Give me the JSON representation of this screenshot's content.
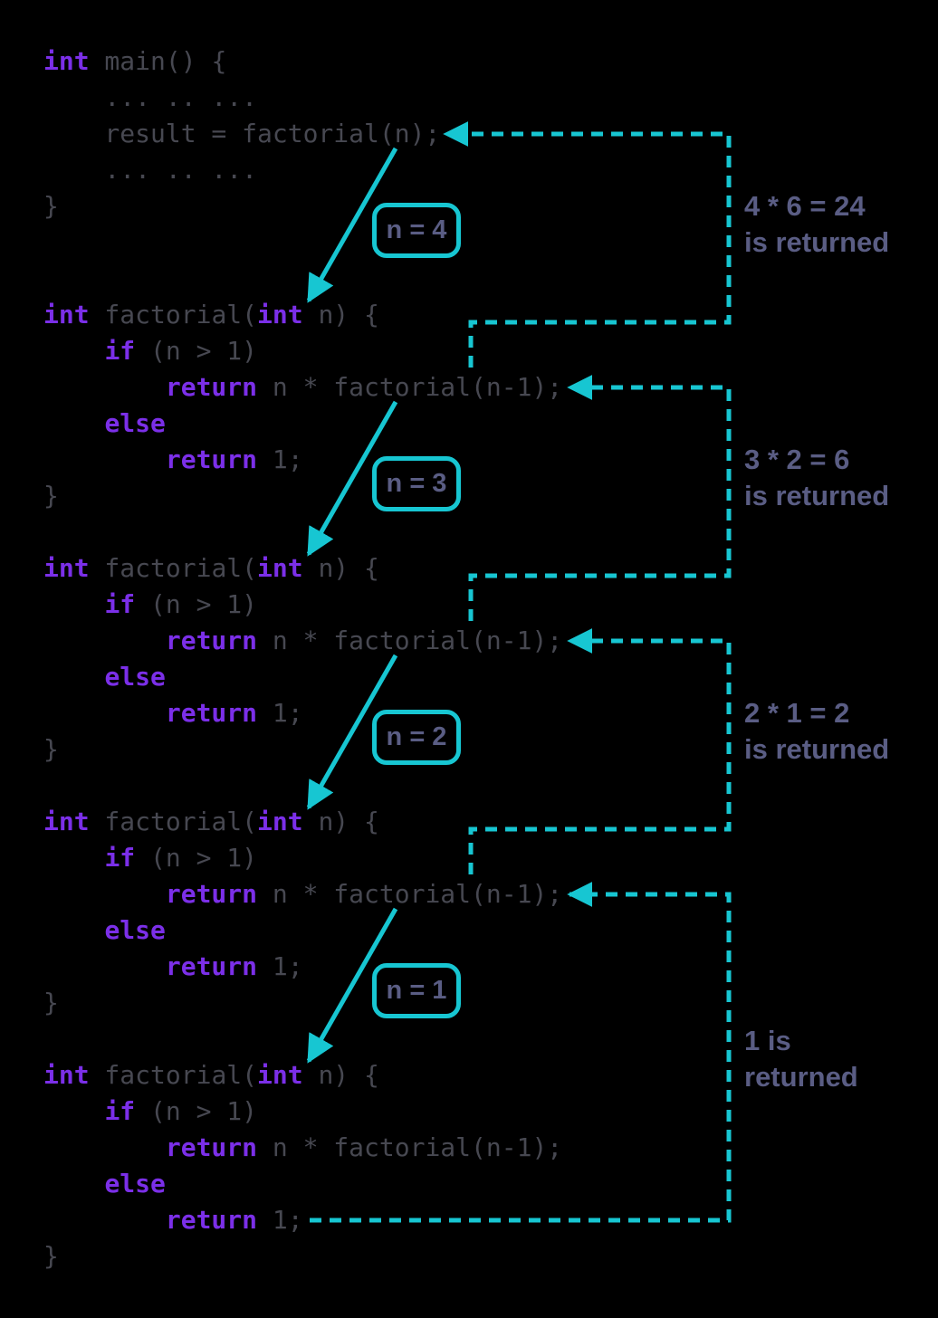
{
  "colors": {
    "background": "#000000",
    "accent_cyan": "#17c6d2",
    "keyword_purple": "#7b2fe8",
    "code_gray": "#474851",
    "label_gray_purple": "#5a5d84"
  },
  "code": {
    "main_block": {
      "lines": [
        [
          {
            "text": "int",
            "type": "keyword"
          },
          {
            "text": " main() {",
            "type": "plain"
          }
        ],
        [
          {
            "text": "    ... .. ...",
            "type": "plain"
          }
        ],
        [
          {
            "text": "    result = factorial(n);",
            "type": "plain"
          }
        ],
        [
          {
            "text": "    ... .. ...",
            "type": "plain"
          }
        ],
        [
          {
            "text": "}",
            "type": "plain"
          }
        ]
      ]
    },
    "frames": [
      {
        "call_label": "n = 4",
        "lines": [
          [
            {
              "text": "int",
              "type": "keyword"
            },
            {
              "text": " factorial(",
              "type": "plain"
            },
            {
              "text": "int",
              "type": "keyword"
            },
            {
              "text": " n) {",
              "type": "plain"
            }
          ],
          [
            {
              "text": "    ",
              "type": "plain"
            },
            {
              "text": "if",
              "type": "keyword"
            },
            {
              "text": " (n > 1)",
              "type": "plain"
            }
          ],
          [
            {
              "text": "        ",
              "type": "plain"
            },
            {
              "text": "return",
              "type": "keyword"
            },
            {
              "text": " n * factorial(n-1);",
              "type": "plain"
            }
          ],
          [
            {
              "text": "    ",
              "type": "plain"
            },
            {
              "text": "else",
              "type": "keyword"
            }
          ],
          [
            {
              "text": "        ",
              "type": "plain"
            },
            {
              "text": "return",
              "type": "keyword"
            },
            {
              "text": " 1;",
              "type": "plain"
            }
          ],
          [
            {
              "text": "}",
              "type": "plain"
            }
          ]
        ]
      },
      {
        "call_label": "n = 3",
        "lines": [
          [
            {
              "text": "int",
              "type": "keyword"
            },
            {
              "text": " factorial(",
              "type": "plain"
            },
            {
              "text": "int",
              "type": "keyword"
            },
            {
              "text": " n) {",
              "type": "plain"
            }
          ],
          [
            {
              "text": "    ",
              "type": "plain"
            },
            {
              "text": "if",
              "type": "keyword"
            },
            {
              "text": " (n > 1)",
              "type": "plain"
            }
          ],
          [
            {
              "text": "        ",
              "type": "plain"
            },
            {
              "text": "return",
              "type": "keyword"
            },
            {
              "text": " n * factorial(n-1);",
              "type": "plain"
            }
          ],
          [
            {
              "text": "    ",
              "type": "plain"
            },
            {
              "text": "else",
              "type": "keyword"
            }
          ],
          [
            {
              "text": "        ",
              "type": "plain"
            },
            {
              "text": "return",
              "type": "keyword"
            },
            {
              "text": " 1;",
              "type": "plain"
            }
          ],
          [
            {
              "text": "}",
              "type": "plain"
            }
          ]
        ]
      },
      {
        "call_label": "n = 2",
        "lines": [
          [
            {
              "text": "int",
              "type": "keyword"
            },
            {
              "text": " factorial(",
              "type": "plain"
            },
            {
              "text": "int",
              "type": "keyword"
            },
            {
              "text": " n) {",
              "type": "plain"
            }
          ],
          [
            {
              "text": "    ",
              "type": "plain"
            },
            {
              "text": "if",
              "type": "keyword"
            },
            {
              "text": " (n > 1)",
              "type": "plain"
            }
          ],
          [
            {
              "text": "        ",
              "type": "plain"
            },
            {
              "text": "return",
              "type": "keyword"
            },
            {
              "text": " n * factorial(n-1);",
              "type": "plain"
            }
          ],
          [
            {
              "text": "    ",
              "type": "plain"
            },
            {
              "text": "else",
              "type": "keyword"
            }
          ],
          [
            {
              "text": "        ",
              "type": "plain"
            },
            {
              "text": "return",
              "type": "keyword"
            },
            {
              "text": " 1;",
              "type": "plain"
            }
          ],
          [
            {
              "text": "}",
              "type": "plain"
            }
          ]
        ]
      },
      {
        "call_label": "n = 1",
        "lines": [
          [
            {
              "text": "int",
              "type": "keyword"
            },
            {
              "text": " factorial(",
              "type": "plain"
            },
            {
              "text": "int",
              "type": "keyword"
            },
            {
              "text": " n) {",
              "type": "plain"
            }
          ],
          [
            {
              "text": "    ",
              "type": "plain"
            },
            {
              "text": "if",
              "type": "keyword"
            },
            {
              "text": " (n > 1)",
              "type": "plain"
            }
          ],
          [
            {
              "text": "        ",
              "type": "plain"
            },
            {
              "text": "return",
              "type": "keyword"
            },
            {
              "text": " n * factorial(n-1);",
              "type": "plain"
            }
          ],
          [
            {
              "text": "    ",
              "type": "plain"
            },
            {
              "text": "else",
              "type": "keyword"
            }
          ],
          [
            {
              "text": "        ",
              "type": "plain"
            },
            {
              "text": "return",
              "type": "keyword"
            },
            {
              "text": " 1;",
              "type": "plain"
            }
          ],
          [
            {
              "text": "}",
              "type": "plain"
            }
          ]
        ]
      }
    ]
  },
  "return_annotations": [
    {
      "line1": "4 * 6 = 24",
      "line2": "is returned"
    },
    {
      "line1": "3 * 2 = 6",
      "line2": "is returned"
    },
    {
      "line1": "2 * 1 = 2",
      "line2": "is returned"
    },
    {
      "line1": "1 is",
      "line2": "returned"
    }
  ]
}
